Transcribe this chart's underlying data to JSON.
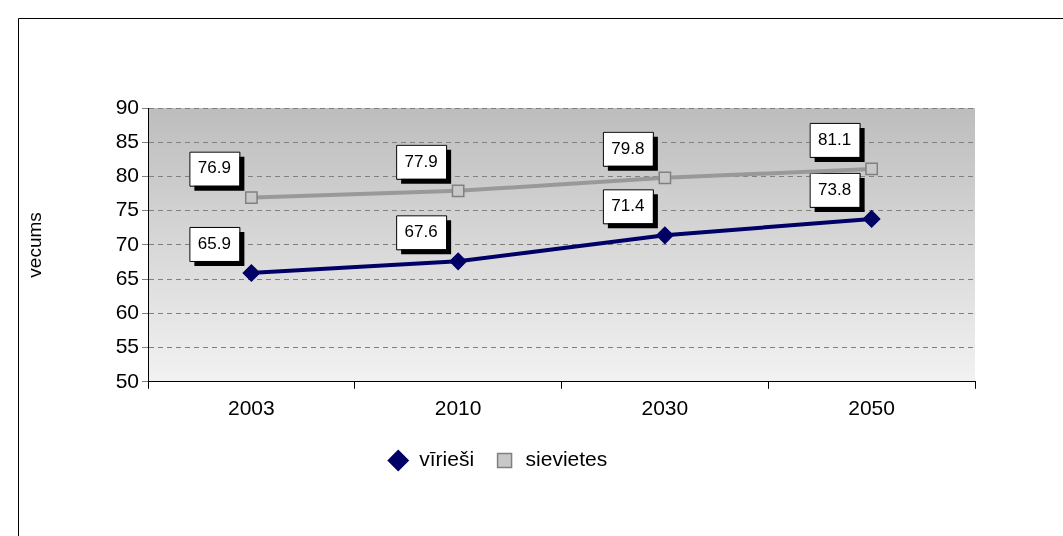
{
  "chart_data": {
    "type": "line",
    "ylabel": "vecums",
    "categories": [
      "2003",
      "2010",
      "2030",
      "2050"
    ],
    "series": [
      {
        "name": "vīrieši",
        "color": "#000066",
        "values": [
          65.9,
          67.6,
          71.4,
          73.8
        ],
        "marker": "diamond"
      },
      {
        "name": "sievietes",
        "color": "#999999",
        "values": [
          76.9,
          77.9,
          79.8,
          81.1
        ],
        "marker": "square"
      }
    ],
    "ylim": [
      50,
      90
    ],
    "yticks": [
      50,
      55,
      60,
      65,
      70,
      75,
      80,
      85,
      90
    ],
    "grid": "y",
    "legend": "bottom",
    "data_labels": true,
    "line_style": "solid"
  }
}
